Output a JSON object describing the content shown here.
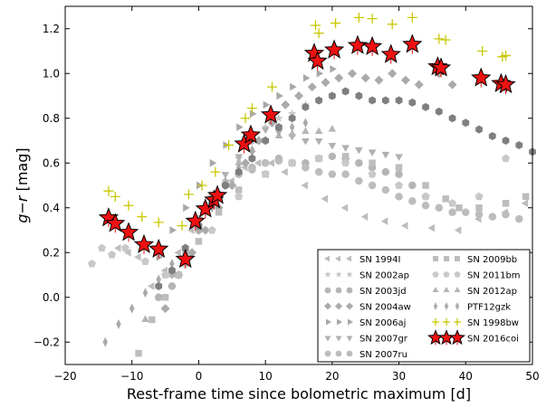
{
  "chart_data": {
    "type": "scatter",
    "xlabel": "Rest-frame time since bolometric maximum [d]",
    "ylabel_main": "g",
    "ylabel_sep": "−",
    "ylabel_sub": "r",
    "ylabel_unit": " [mag]",
    "xlim": [
      -20,
      50
    ],
    "ylim": [
      -0.3,
      1.3
    ],
    "xticks": [
      -20,
      -10,
      0,
      10,
      20,
      30,
      40,
      50
    ],
    "xtick_labels": [
      "−20",
      "−10",
      "0",
      "10",
      "20",
      "30",
      "40",
      "50"
    ],
    "yticks": [
      -0.2,
      0.0,
      0.2,
      0.4,
      0.6,
      0.8,
      1.0,
      1.2
    ],
    "ytick_labels": [
      "−0.2",
      "0.0",
      "0.2",
      "0.4",
      "0.6",
      "0.8",
      "1.0",
      "1.2"
    ],
    "legend_position": "bottom-right",
    "legend": [
      {
        "label": "SN 1994I",
        "marker": "triangle-left",
        "color": "#bdbdbd"
      },
      {
        "label": "SN 2009bb",
        "marker": "square",
        "color": "#bdbdbd"
      },
      {
        "label": "SN 2002ap",
        "marker": "star",
        "color": "#c8c8c8"
      },
      {
        "label": "SN 2011bm",
        "marker": "pentagon",
        "color": "#c8c8c8"
      },
      {
        "label": "SN 2003jd",
        "marker": "circle",
        "color": "#b5b5b5"
      },
      {
        "label": "SN 2012ap",
        "marker": "triangle-up",
        "color": "#b5b5b5"
      },
      {
        "label": "SN 2004aw",
        "marker": "diamond",
        "color": "#aaaaaa"
      },
      {
        "label": "PTF12gzk",
        "marker": "thin-diamond",
        "color": "#aaaaaa"
      },
      {
        "label": "SN 2006aj",
        "marker": "triangle-right",
        "color": "#a8a8a8"
      },
      {
        "label": "SN 1998bw",
        "marker": "plus",
        "color": "#c8c800"
      },
      {
        "label": "SN 2007gr",
        "marker": "triangle-down",
        "color": "#b0b0b0"
      },
      {
        "label": "SN 2016coi",
        "marker": "red-star",
        "color": "#ee1111"
      },
      {
        "label": "SN 2007ru",
        "marker": "circle",
        "color": "#bcbcbc"
      }
    ],
    "series": [
      {
        "name": "SN 2016coi",
        "marker": "red-star",
        "color": "#ee1111",
        "x": [
          -13.5,
          -12.5,
          -10.5,
          -8.2,
          -6,
          -2,
          -0.5,
          1,
          2.3,
          2.8,
          6.8,
          7.8,
          10.8,
          17.3,
          17.8,
          20.3,
          23.8,
          26,
          28.8,
          32,
          35.8,
          36.3,
          42.3,
          45.3,
          46
        ],
        "y": [
          0.355,
          0.33,
          0.29,
          0.235,
          0.215,
          0.17,
          0.34,
          0.395,
          0.435,
          0.455,
          0.685,
          0.725,
          0.815,
          1.09,
          1.055,
          1.105,
          1.125,
          1.12,
          1.085,
          1.13,
          1.03,
          1.025,
          0.98,
          0.955,
          0.95
        ]
      },
      {
        "name": "SN 1998bw",
        "marker": "plus",
        "color": "#c8c800",
        "x": [
          -13.5,
          -12.5,
          -10.5,
          -8.5,
          -6,
          -2.5,
          -1.5,
          0.5,
          2.5,
          4.5,
          7,
          8,
          11,
          17.5,
          18,
          20.5,
          24,
          26,
          29,
          32,
          36,
          37,
          42.5,
          45.5,
          46
        ],
        "y": [
          0.475,
          0.45,
          0.41,
          0.36,
          0.335,
          0.32,
          0.46,
          0.5,
          0.56,
          0.68,
          0.8,
          0.845,
          0.94,
          1.215,
          1.18,
          1.225,
          1.25,
          1.245,
          1.22,
          1.25,
          1.155,
          1.15,
          1.1,
          1.075,
          1.08
        ]
      },
      {
        "name": "SN 1994I",
        "marker": "triangle-left",
        "color": "#bdbdbd",
        "x": [
          -12,
          -10.5,
          -9,
          -7,
          -5,
          -3,
          -1,
          1,
          3,
          5,
          7,
          9,
          11,
          13,
          16,
          19,
          22,
          25,
          28,
          31,
          35,
          39,
          42,
          46,
          49
        ],
        "y": [
          0.22,
          0.2,
          0.18,
          0.05,
          0.12,
          0.2,
          0.3,
          0.38,
          0.46,
          0.52,
          0.58,
          0.6,
          0.6,
          0.56,
          0.5,
          0.44,
          0.4,
          0.36,
          0.34,
          0.32,
          0.31,
          0.3,
          0.35,
          0.38,
          0.42
        ]
      },
      {
        "name": "SN 2002ap",
        "marker": "star",
        "color": "#c8c8c8",
        "x": [
          -4,
          -2,
          0,
          2,
          4,
          6,
          8,
          10,
          12,
          14,
          16,
          18,
          20,
          22
        ],
        "y": [
          0.12,
          0.22,
          0.32,
          0.42,
          0.52,
          0.62,
          0.7,
          0.76,
          0.8,
          0.82,
          0.86,
          0.88,
          0.9,
          0.92
        ]
      },
      {
        "name": "SN 2003jd",
        "marker": "circle",
        "color": "#b5b5b5",
        "x": [
          -6,
          -4,
          -2,
          0,
          2,
          4,
          6,
          8,
          10,
          12,
          14,
          16,
          18,
          20,
          22,
          24,
          26,
          28,
          30,
          32,
          34
        ],
        "y": [
          0.0,
          0.05,
          0.15,
          0.3,
          0.42,
          0.5,
          0.55,
          0.58,
          0.6,
          0.62,
          0.6,
          0.6,
          0.62,
          0.63,
          0.62,
          0.6,
          0.58,
          0.56,
          0.55,
          0.5,
          0.45
        ]
      },
      {
        "name": "SN 2004aw",
        "marker": "diamond",
        "color": "#aaaaaa",
        "x": [
          -5,
          -3,
          -1,
          1,
          3,
          5,
          7,
          9,
          11,
          13,
          15,
          17,
          19,
          21,
          23,
          25,
          27,
          29,
          31,
          33,
          36,
          38
        ],
        "y": [
          -0.05,
          0.1,
          0.2,
          0.3,
          0.4,
          0.5,
          0.6,
          0.7,
          0.78,
          0.86,
          0.9,
          0.94,
          0.96,
          0.98,
          1.0,
          0.98,
          0.97,
          1.0,
          0.97,
          0.95,
          1.0,
          0.95
        ]
      },
      {
        "name": "SN 2006aj",
        "marker": "triangle-right",
        "color": "#a8a8a8",
        "x": [
          -6,
          -4,
          -2,
          0,
          2,
          4,
          6,
          8,
          10,
          12,
          14,
          16,
          18,
          20
        ],
        "y": [
          0.18,
          0.3,
          0.4,
          0.5,
          0.6,
          0.68,
          0.76,
          0.82,
          0.86,
          0.9,
          0.94,
          0.98,
          1.0,
          1.02
        ]
      },
      {
        "name": "SN 2007gr",
        "marker": "triangle-down",
        "color": "#b0b0b0",
        "x": [
          -4,
          -2,
          0,
          2,
          4,
          6,
          8,
          10,
          12,
          14,
          16,
          18,
          20,
          22,
          24,
          26,
          28,
          30
        ],
        "y": [
          0.1,
          0.2,
          0.3,
          0.45,
          0.55,
          0.63,
          0.7,
          0.75,
          0.74,
          0.72,
          0.7,
          0.7,
          0.68,
          0.67,
          0.66,
          0.65,
          0.64,
          0.63
        ]
      },
      {
        "name": "SN 2007ru",
        "marker": "circle",
        "color": "#bcbcbc",
        "x": [
          0,
          2,
          4,
          6,
          8,
          10,
          12,
          14,
          16,
          18,
          20,
          22,
          24,
          26,
          28,
          30,
          32,
          34,
          36,
          38,
          40,
          42,
          44,
          46,
          48
        ],
        "y": [
          0.35,
          0.45,
          0.5,
          0.55,
          0.57,
          0.6,
          0.61,
          0.6,
          0.58,
          0.56,
          0.55,
          0.55,
          0.52,
          0.5,
          0.48,
          0.45,
          0.43,
          0.41,
          0.4,
          0.38,
          0.38,
          0.37,
          0.36,
          0.37,
          0.35
        ]
      },
      {
        "name": "SN 2009bb",
        "marker": "square",
        "color": "#bdbdbd",
        "x": [
          -9,
          -7,
          -5,
          -3,
          0,
          3,
          6,
          10,
          14,
          18,
          22,
          26,
          30,
          34,
          37,
          39,
          42,
          46,
          49
        ],
        "y": [
          -0.25,
          -0.1,
          0.0,
          0.1,
          0.25,
          0.38,
          0.48,
          0.55,
          0.6,
          0.62,
          0.63,
          0.6,
          0.58,
          0.5,
          0.44,
          0.4,
          0.4,
          0.42,
          0.45
        ]
      },
      {
        "name": "SN 2011bm",
        "marker": "pentagon",
        "color": "#c8c8c8",
        "x": [
          -16,
          -14.5,
          -13,
          -11,
          -8,
          -5,
          -2,
          2,
          6,
          10,
          14,
          18,
          22,
          26,
          30,
          34,
          38,
          42,
          46
        ],
        "y": [
          0.15,
          0.22,
          0.19,
          0.22,
          0.16,
          0.1,
          0.15,
          0.3,
          0.45,
          0.55,
          0.6,
          0.62,
          0.6,
          0.55,
          0.5,
          0.45,
          0.42,
          0.45,
          0.62
        ]
      },
      {
        "name": "SN 2012ap",
        "marker": "triangle-up",
        "color": "#b5b5b5",
        "x": [
          -8,
          -6,
          -4,
          -2,
          0,
          2,
          4,
          6,
          8,
          10,
          12,
          14,
          16,
          18,
          20
        ],
        "y": [
          -0.1,
          0.0,
          0.1,
          0.2,
          0.32,
          0.42,
          0.52,
          0.6,
          0.66,
          0.7,
          0.72,
          0.73,
          0.74,
          0.74,
          0.75
        ]
      },
      {
        "name": "PTF12gzk",
        "marker": "thin-diamond",
        "color": "#aaaaaa",
        "x": [
          -14,
          -12,
          -10,
          -8,
          -6,
          -4,
          -2,
          0,
          2,
          4,
          6,
          8,
          10,
          12,
          14,
          16
        ],
        "y": [
          -0.2,
          -0.12,
          -0.05,
          0.02,
          0.08,
          0.15,
          0.22,
          0.3,
          0.4,
          0.5,
          0.58,
          0.65,
          0.7,
          0.74,
          0.76,
          0.78
        ]
      },
      {
        "name": "dark-gray-hexagons",
        "marker": "hexagon",
        "color": "#7f7f7f",
        "x": [
          -6,
          -4,
          -2,
          0,
          2,
          4,
          6,
          8,
          10,
          12,
          14,
          16,
          18,
          20,
          22,
          24,
          26,
          28,
          30,
          32,
          34,
          36,
          38,
          40,
          42,
          44,
          46,
          48,
          50
        ],
        "y": [
          0.05,
          0.12,
          0.22,
          0.32,
          0.42,
          0.5,
          0.56,
          0.62,
          0.7,
          0.76,
          0.8,
          0.85,
          0.88,
          0.9,
          0.92,
          0.9,
          0.88,
          0.88,
          0.88,
          0.87,
          0.85,
          0.83,
          0.8,
          0.78,
          0.75,
          0.72,
          0.7,
          0.68,
          0.65
        ]
      }
    ]
  }
}
